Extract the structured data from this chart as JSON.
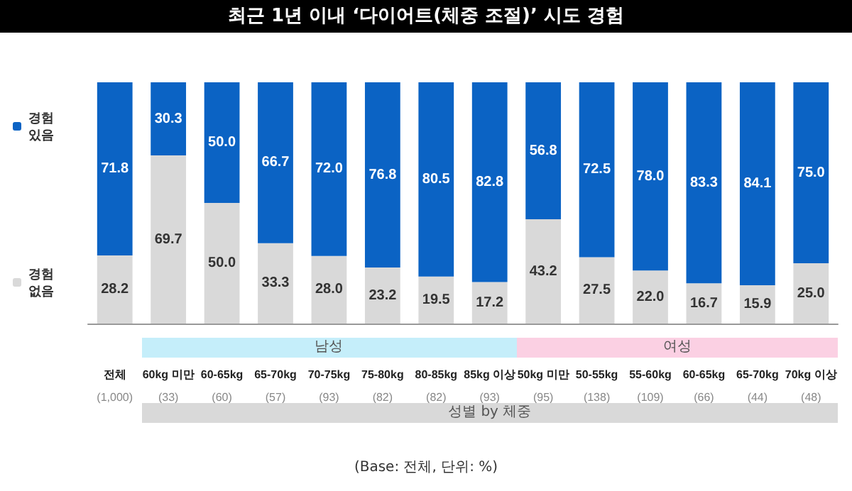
{
  "chart_data": {
    "type": "bar",
    "stacked": true,
    "title": "최근 1년 이내 ‘다이어트(체중 조절)’ 시도 경험",
    "categories": [
      "전체\n(1,000)",
      "60kg 미만\n(33)",
      "60-65kg\n(60)",
      "65-70kg\n(57)",
      "70-75kg\n(93)",
      "75-80kg\n(82)",
      "80-85kg\n(82)",
      "85kg 이상\n(93)",
      "50kg 미만\n(95)",
      "50-55kg\n(138)",
      "55-60kg\n(109)",
      "60-65kg\n(66)",
      "65-70kg\n(44)",
      "70kg 이상\n(48)"
    ],
    "series": [
      {
        "name": "경험\n없음",
        "color": "#d9d9d9",
        "values": [
          28.2,
          69.7,
          50.0,
          33.3,
          28.0,
          23.2,
          19.5,
          17.2,
          43.2,
          27.5,
          22.0,
          16.7,
          15.9,
          25.0
        ],
        "value_labels": [
          "28.2",
          "69.7",
          "50.0",
          "33.3",
          "28.0",
          "23.2",
          "19.5",
          "17.2",
          "43.2",
          "27.5",
          "22.0",
          "16.7",
          "15.9",
          "25.0"
        ]
      },
      {
        "name": "경험\n있음",
        "color": "#0b63c4",
        "values": [
          71.8,
          30.3,
          50.0,
          66.7,
          72.0,
          76.8,
          80.5,
          82.8,
          56.8,
          72.5,
          78.0,
          83.3,
          84.1,
          75.0
        ],
        "value_labels": [
          "71.8",
          "30.3",
          "50.0",
          "66.7",
          "72.0",
          "76.8",
          "80.5",
          "82.8",
          "56.8",
          "72.5",
          "78.0",
          "83.3",
          "84.1",
          "75.0"
        ]
      }
    ],
    "legend": "left",
    "annotations": [
      "남성",
      "여성",
      "성별 by 체중",
      "(Base: 전체, 단위: %)"
    ]
  }
}
